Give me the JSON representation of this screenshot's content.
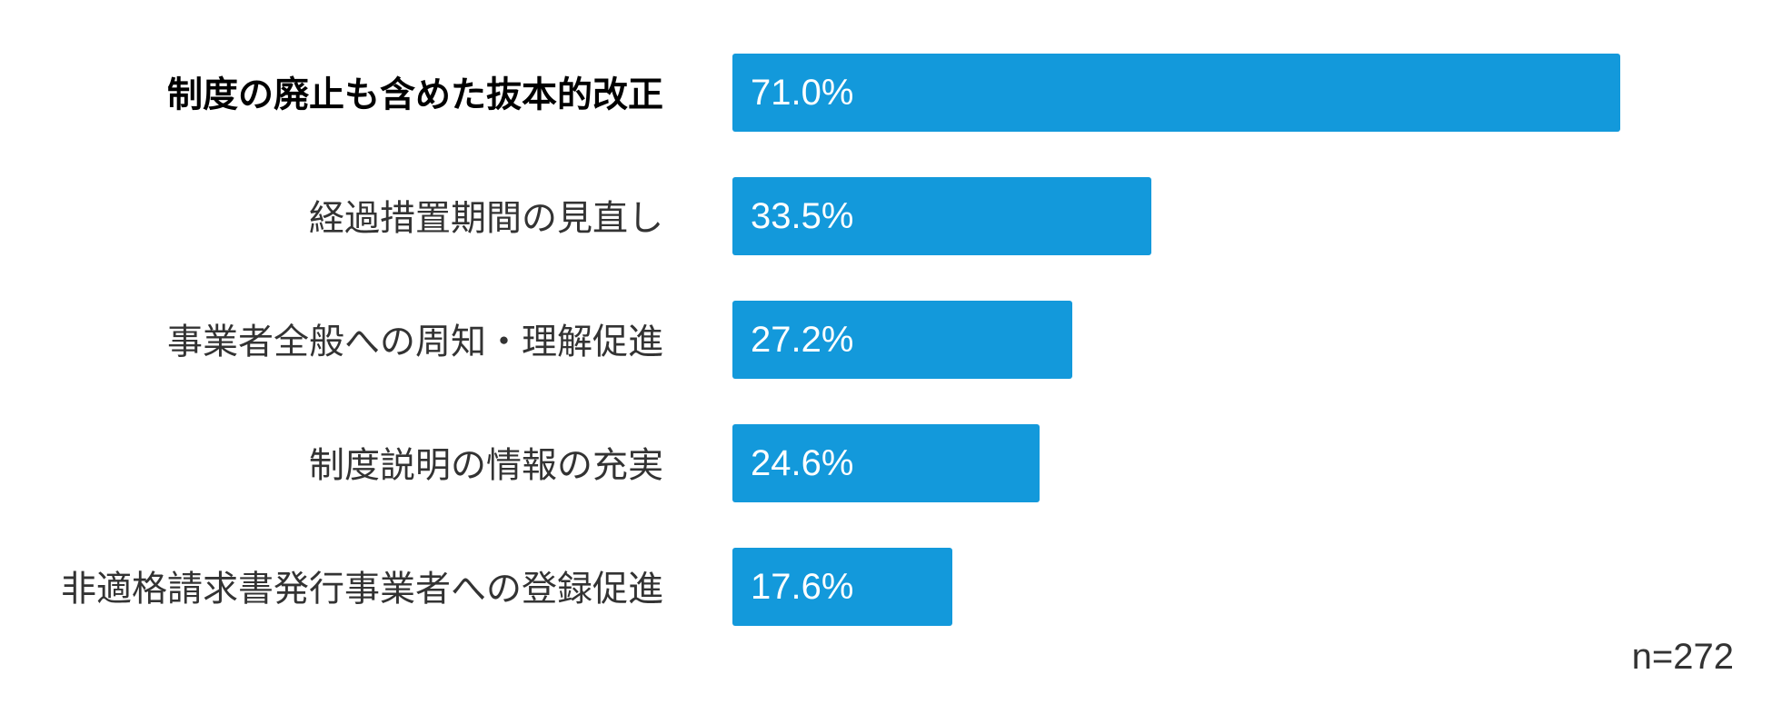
{
  "colors": {
    "bar": "#1399db",
    "label": "#333333",
    "label_highlight": "#000000",
    "value_text": "#ffffff"
  },
  "note": "n=272",
  "chart_data": {
    "type": "bar",
    "orientation": "horizontal",
    "categories": [
      "制度の廃止も含めた抜本的改正",
      "経過措置期間の見直し",
      "事業者全般への周知・理解促進",
      "制度説明の情報の充実",
      "非適格請求書発行事業者への登録促進"
    ],
    "values": [
      71.0,
      33.5,
      27.2,
      24.6,
      17.6
    ],
    "value_labels": [
      "71.0%",
      "33.5%",
      "27.2%",
      "24.6%",
      "17.6%"
    ],
    "highlight_index": 0,
    "unit": "%",
    "xlim": [
      0,
      100
    ],
    "grid": false,
    "legend": "none"
  }
}
